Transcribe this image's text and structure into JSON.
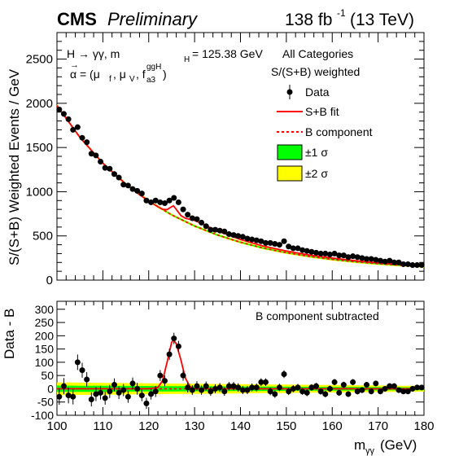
{
  "header": {
    "experiment": "CMS",
    "status": "Preliminary",
    "lumi_value": "138 fb",
    "lumi_exp": "-1",
    "energy": "(13 TeV)"
  },
  "annotations": {
    "process": "H → γγ, m",
    "mass_sub": "H",
    "mass_value": "= 125.38 GeV",
    "alpha_lhs": "α = (μ",
    "mu_f_sub": "f",
    "mu_v": ", μ",
    "mu_v_sub": "V",
    "fa3": ", f",
    "fa3_sup": "ggH",
    "fa3_sub": "a3",
    "close": ")",
    "category": "All Categories",
    "weighting": "S/(S+B) weighted",
    "residual_note": "B component subtracted"
  },
  "legend": {
    "placement": "top-right",
    "items": [
      {
        "label": "Data",
        "style": "marker",
        "color": "#000000"
      },
      {
        "label": "S+B fit",
        "style": "line",
        "color": "#ff0000"
      },
      {
        "label": "B component",
        "style": "dotted",
        "color": "#ff0000"
      },
      {
        "label": "±1 σ",
        "style": "box",
        "color": "#00ff00"
      },
      {
        "label": "±2 σ",
        "style": "box",
        "color": "#ffff00"
      }
    ]
  },
  "colors": {
    "fit": "#ff0000",
    "band1": "#00ff00",
    "band2": "#ffff00",
    "data": "#000000"
  },
  "chart_data": [
    {
      "type": "scatter",
      "panel": "main",
      "ylabel": "S/(S+B) Weighted Events / GeV",
      "xlim": [
        100,
        180
      ],
      "ylim": [
        0,
        2800
      ],
      "yticks": [
        0,
        500,
        1000,
        1500,
        2000,
        2500
      ],
      "grid": false,
      "series": [
        {
          "name": "Data",
          "x": [
            100.5,
            101.5,
            102.5,
            103.5,
            104.5,
            105.5,
            106.5,
            107.5,
            108.5,
            109.5,
            110.5,
            111.5,
            112.5,
            113.5,
            114.5,
            115.5,
            116.5,
            117.5,
            118.5,
            119.5,
            120.5,
            121.5,
            122.5,
            123.5,
            124.5,
            125.5,
            126.5,
            127.5,
            128.5,
            129.5,
            130.5,
            131.5,
            132.5,
            133.5,
            134.5,
            135.5,
            136.5,
            137.5,
            138.5,
            139.5,
            140.5,
            141.5,
            142.5,
            143.5,
            144.5,
            145.5,
            146.5,
            147.5,
            148.5,
            149.5,
            150.5,
            151.5,
            152.5,
            153.5,
            154.5,
            155.5,
            156.5,
            157.5,
            158.5,
            159.5,
            160.5,
            161.5,
            162.5,
            163.5,
            164.5,
            165.5,
            166.5,
            167.5,
            168.5,
            169.5,
            170.5,
            171.5,
            172.5,
            173.5,
            174.5,
            175.5,
            176.5,
            177.5,
            178.5,
            179.5
          ],
          "y": [
            1930,
            1880,
            1820,
            1700,
            1730,
            1610,
            1560,
            1430,
            1410,
            1340,
            1270,
            1260,
            1200,
            1160,
            1080,
            1070,
            1030,
            1010,
            980,
            900,
            880,
            900,
            880,
            870,
            900,
            930,
            880,
            800,
            740,
            700,
            690,
            650,
            610,
            570,
            570,
            560,
            550,
            520,
            510,
            500,
            490,
            470,
            460,
            450,
            440,
            420,
            420,
            410,
            400,
            440,
            380,
            360,
            360,
            340,
            330,
            320,
            310,
            300,
            300,
            290,
            300,
            280,
            280,
            260,
            270,
            260,
            250,
            240,
            240,
            230,
            220,
            210,
            220,
            200,
            200,
            180,
            180,
            170,
            170,
            170
          ]
        },
        {
          "name": "S+B fit",
          "x": [
            100,
            105,
            110,
            115,
            118,
            120,
            122,
            123,
            124,
            125,
            125.4,
            126,
            127,
            128,
            130,
            135,
            140,
            145,
            150,
            155,
            160,
            165,
            170,
            175,
            180
          ],
          "y": [
            1975,
            1615,
            1323,
            1087,
            965,
            894,
            830,
            801,
            798,
            830,
            840,
            800,
            730,
            700,
            675,
            555,
            460,
            385,
            330,
            285,
            250,
            220,
            195,
            175,
            160
          ]
        },
        {
          "name": "B component",
          "x": [
            100,
            105,
            110,
            115,
            120,
            125,
            130,
            135,
            140,
            145,
            150,
            155,
            160,
            165,
            170,
            175,
            180
          ],
          "y": [
            1975,
            1615,
            1323,
            1087,
            894,
            738,
            612,
            510,
            428,
            362,
            310,
            268,
            234,
            207,
            185,
            168,
            155
          ]
        }
      ]
    },
    {
      "type": "scatter",
      "panel": "ratio",
      "xlabel": "m_γγ (GeV)",
      "ylabel": "Data - B",
      "xlim": [
        100,
        180
      ],
      "ylim": [
        -100,
        330
      ],
      "xticks": [
        100,
        110,
        120,
        130,
        140,
        150,
        160,
        170,
        180
      ],
      "yticks": [
        -100,
        -50,
        0,
        50,
        100,
        150,
        200,
        250,
        300
      ],
      "series": [
        {
          "name": "Data",
          "x": [
            100.5,
            101.5,
            102.5,
            103.5,
            104.5,
            105.5,
            106.5,
            107.5,
            108.5,
            109.5,
            110.5,
            111.5,
            112.5,
            113.5,
            114.5,
            115.5,
            116.5,
            117.5,
            118.5,
            119.5,
            120.5,
            121.5,
            122.5,
            123.5,
            124.5,
            125.5,
            126.5,
            127.5,
            128.5,
            129.5,
            130.5,
            131.5,
            132.5,
            133.5,
            134.5,
            135.5,
            136.5,
            137.5,
            138.5,
            139.5,
            140.5,
            141.5,
            142.5,
            143.5,
            144.5,
            145.5,
            146.5,
            147.5,
            148.5,
            149.5,
            150.5,
            151.5,
            152.5,
            153.5,
            154.5,
            155.5,
            156.5,
            157.5,
            158.5,
            159.5,
            160.5,
            161.5,
            162.5,
            163.5,
            164.5,
            165.5,
            166.5,
            167.5,
            168.5,
            169.5,
            170.5,
            171.5,
            172.5,
            173.5,
            174.5,
            175.5,
            176.5,
            177.5,
            178.5,
            179.5
          ],
          "y": [
            -30,
            10,
            -25,
            -30,
            100,
            70,
            35,
            -40,
            -20,
            -15,
            -35,
            -10,
            15,
            -15,
            -5,
            -30,
            20,
            0,
            -25,
            -55,
            -20,
            -10,
            50,
            30,
            130,
            190,
            160,
            50,
            5,
            -5,
            10,
            -5,
            10,
            -10,
            0,
            5,
            -10,
            10,
            10,
            5,
            -5,
            -5,
            5,
            5,
            25,
            25,
            -10,
            -20,
            5,
            55,
            -10,
            0,
            5,
            -10,
            -15,
            5,
            10,
            -10,
            -20,
            0,
            25,
            -15,
            15,
            -20,
            25,
            -10,
            -5,
            15,
            -10,
            20,
            -10,
            0,
            10,
            10,
            -5,
            -10,
            -10,
            0,
            5,
            5
          ]
        },
        {
          "name": "S+B fit",
          "x": [
            100,
            120,
            122,
            123,
            124,
            125,
            125.4,
            126,
            127,
            128,
            129,
            130,
            180
          ],
          "y": [
            0,
            0,
            5,
            30,
            100,
            175,
            185,
            170,
            110,
            40,
            8,
            0,
            0
          ]
        }
      ]
    }
  ]
}
